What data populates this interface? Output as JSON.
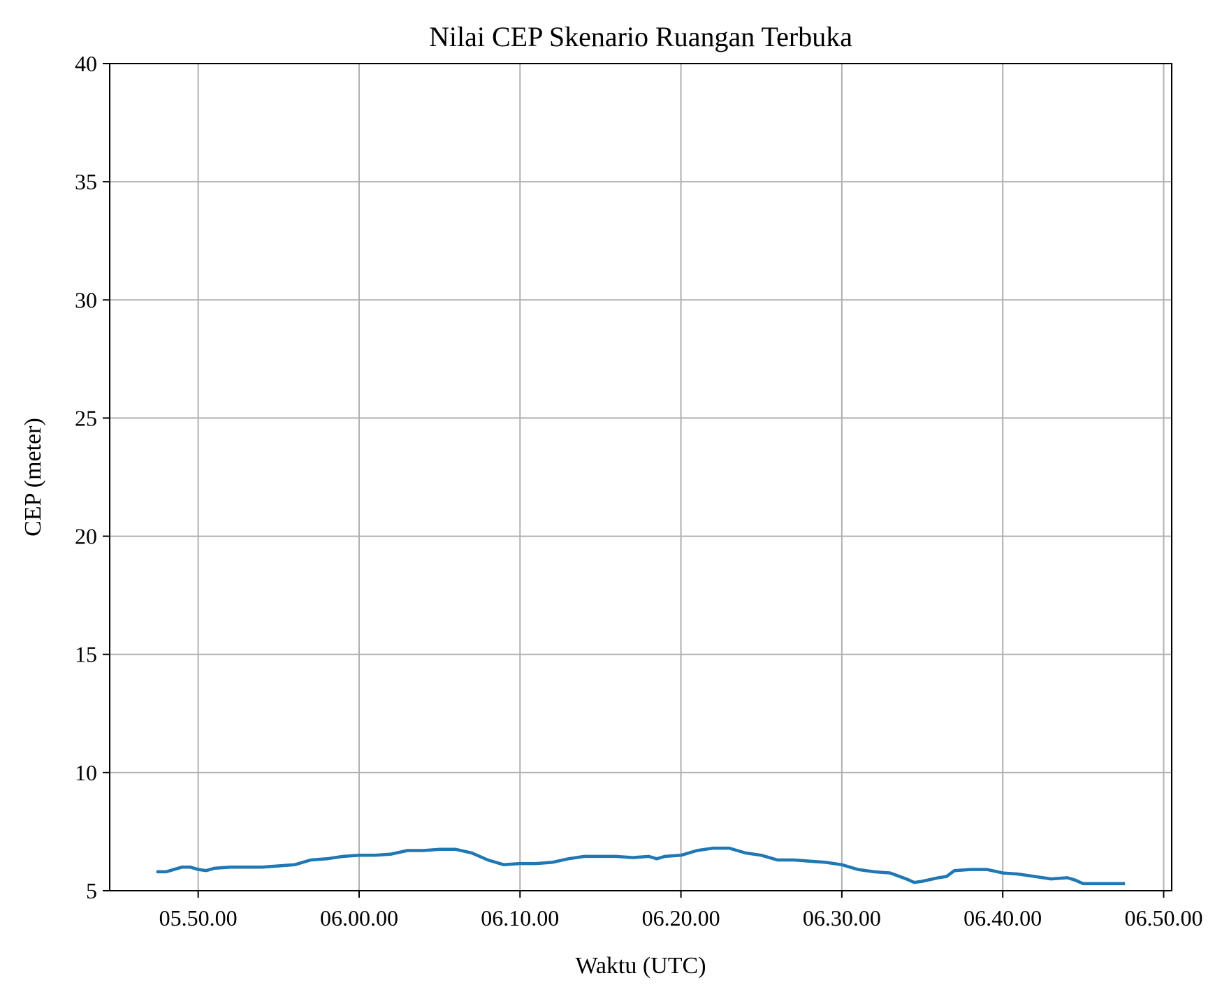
{
  "chart_data": {
    "type": "line",
    "title": "Nilai CEP Skenario Ruangan Terbuka",
    "xlabel": "Waktu (UTC)",
    "ylabel": "CEP (meter)",
    "x_unit": "time of day (HH.MM.SS)",
    "xlim": [
      "05.44.30",
      "06.50.30"
    ],
    "ylim": [
      5,
      40
    ],
    "x_ticks": [
      {
        "label": "05.50.00",
        "value": "05.50.00"
      },
      {
        "label": "06.00.00",
        "value": "06.00.00"
      },
      {
        "label": "06.10.00",
        "value": "06.10.00"
      },
      {
        "label": "06.20.00",
        "value": "06.20.00"
      },
      {
        "label": "06.30.00",
        "value": "06.30.00"
      },
      {
        "label": "06.40.00",
        "value": "06.40.00"
      },
      {
        "label": "06.50.00",
        "value": "06.50.00"
      }
    ],
    "y_ticks": [
      5,
      10,
      15,
      20,
      25,
      30,
      35,
      40
    ],
    "grid": true,
    "series": [
      {
        "color": "#1f77b4",
        "points": [
          [
            "05.47.30",
            5.8
          ],
          [
            "05.48.00",
            5.8
          ],
          [
            "05.48.30",
            5.9
          ],
          [
            "05.49.00",
            6.0
          ],
          [
            "05.49.30",
            6.0
          ],
          [
            "05.50.00",
            5.9
          ],
          [
            "05.50.30",
            5.85
          ],
          [
            "05.51.00",
            5.95
          ],
          [
            "05.52.00",
            6.0
          ],
          [
            "05.53.00",
            6.0
          ],
          [
            "05.54.00",
            6.0
          ],
          [
            "05.55.00",
            6.05
          ],
          [
            "05.56.00",
            6.1
          ],
          [
            "05.56.30",
            6.2
          ],
          [
            "05.57.00",
            6.3
          ],
          [
            "05.58.00",
            6.35
          ],
          [
            "05.59.00",
            6.45
          ],
          [
            "06.00.00",
            6.5
          ],
          [
            "06.01.00",
            6.5
          ],
          [
            "06.02.00",
            6.55
          ],
          [
            "06.03.00",
            6.7
          ],
          [
            "06.04.00",
            6.7
          ],
          [
            "06.05.00",
            6.75
          ],
          [
            "06.06.00",
            6.75
          ],
          [
            "06.07.00",
            6.6
          ],
          [
            "06.08.00",
            6.3
          ],
          [
            "06.09.00",
            6.1
          ],
          [
            "06.10.00",
            6.15
          ],
          [
            "06.11.00",
            6.15
          ],
          [
            "06.12.00",
            6.2
          ],
          [
            "06.13.00",
            6.35
          ],
          [
            "06.14.00",
            6.45
          ],
          [
            "06.15.00",
            6.45
          ],
          [
            "06.16.00",
            6.45
          ],
          [
            "06.17.00",
            6.4
          ],
          [
            "06.18.00",
            6.45
          ],
          [
            "06.18.30",
            6.35
          ],
          [
            "06.19.00",
            6.45
          ],
          [
            "06.20.00",
            6.5
          ],
          [
            "06.21.00",
            6.7
          ],
          [
            "06.22.00",
            6.8
          ],
          [
            "06.23.00",
            6.8
          ],
          [
            "06.24.00",
            6.6
          ],
          [
            "06.25.00",
            6.5
          ],
          [
            "06.26.00",
            6.3
          ],
          [
            "06.27.00",
            6.3
          ],
          [
            "06.28.00",
            6.25
          ],
          [
            "06.29.00",
            6.2
          ],
          [
            "06.30.00",
            6.1
          ],
          [
            "06.31.00",
            5.9
          ],
          [
            "06.32.00",
            5.8
          ],
          [
            "06.33.00",
            5.75
          ],
          [
            "06.34.00",
            5.5
          ],
          [
            "06.34.30",
            5.35
          ],
          [
            "06.35.00",
            5.4
          ],
          [
            "06.36.00",
            5.55
          ],
          [
            "06.36.30",
            5.6
          ],
          [
            "06.37.00",
            5.85
          ],
          [
            "06.38.00",
            5.9
          ],
          [
            "06.39.00",
            5.9
          ],
          [
            "06.40.00",
            5.75
          ],
          [
            "06.41.00",
            5.7
          ],
          [
            "06.42.00",
            5.6
          ],
          [
            "06.43.00",
            5.5
          ],
          [
            "06.44.00",
            5.55
          ],
          [
            "06.44.30",
            5.45
          ],
          [
            "06.45.00",
            5.3
          ],
          [
            "06.46.00",
            5.3
          ],
          [
            "06.47.00",
            5.3
          ],
          [
            "06.47.30",
            5.3
          ]
        ]
      }
    ]
  }
}
